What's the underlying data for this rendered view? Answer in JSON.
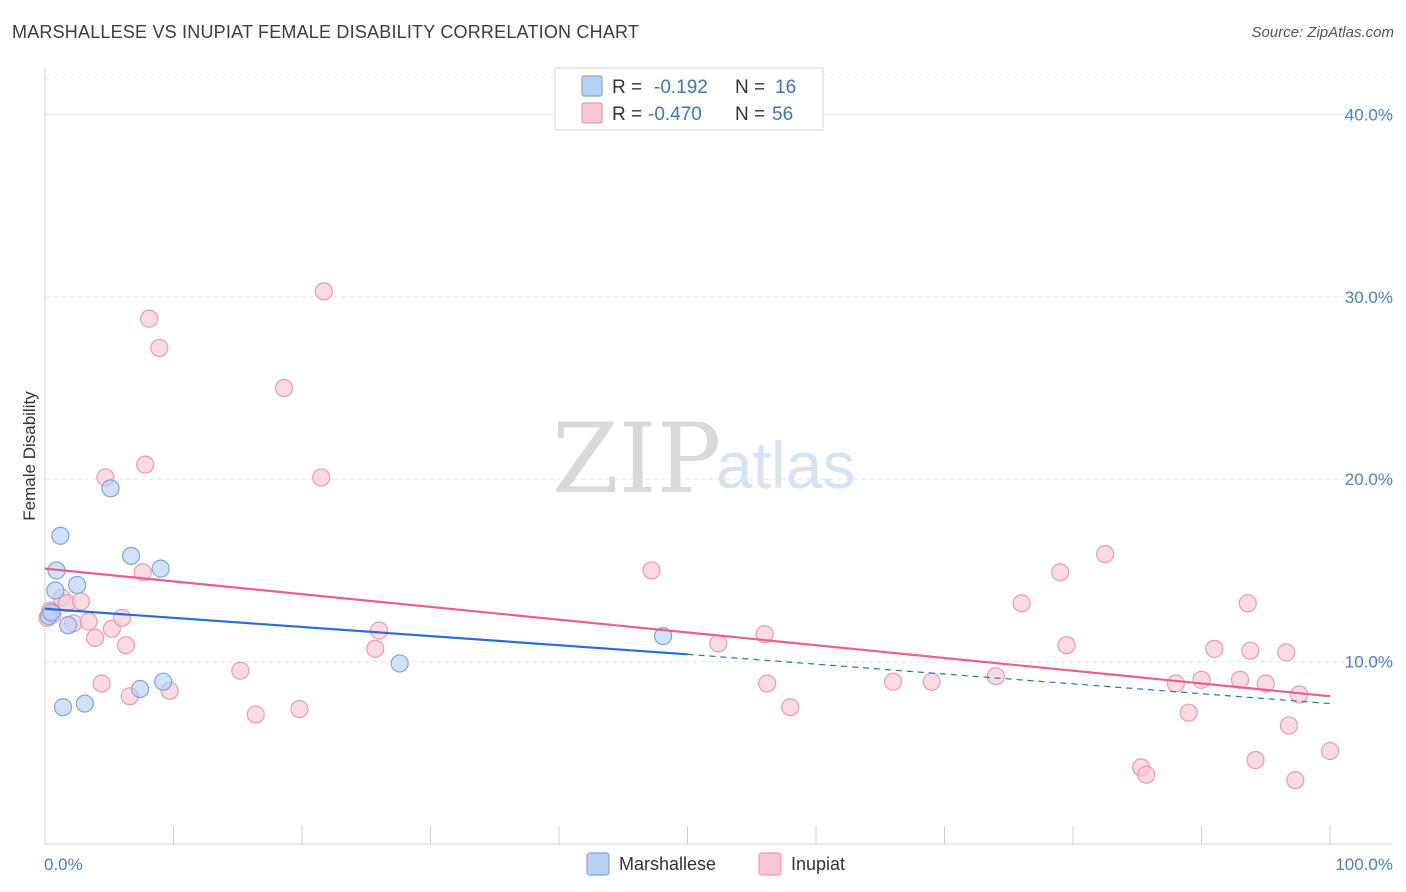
{
  "header": {
    "title": "MARSHALLESE VS INUPIAT FEMALE DISABILITY CORRELATION CHART",
    "source": "Source: ZipAtlas.com"
  },
  "watermark": {
    "zip": "ZIP",
    "atlas": "atlas"
  },
  "legend": {
    "row1": {
      "r_label": "R =",
      "r_value": "-0.192",
      "n_label": "N =",
      "n_value": "16"
    },
    "row2": {
      "r_label": "R =",
      "r_value": "-0.470",
      "n_label": "N =",
      "n_value": "56"
    }
  },
  "colors": {
    "marshallese_fill": "#b9d1f3",
    "marshallese_stroke": "#7ea6e0",
    "marshallese_line": "#2a6fd0",
    "inupiat_fill": "#f8c6d4",
    "inupiat_stroke": "#ee9ab4",
    "inupiat_line": "#e8608c"
  },
  "chart_data": {
    "type": "scatter",
    "title": "MARSHALLESE VS INUPIAT FEMALE DISABILITY CORRELATION CHART",
    "ylabel": "Female Disability",
    "xlabel": "",
    "xlim": [
      0,
      100
    ],
    "ylim": [
      0,
      42
    ],
    "x_tick_labels": [
      "0.0%",
      "100.0%"
    ],
    "y_ticks": [
      10,
      20,
      30,
      40
    ],
    "y_tick_labels": [
      "10.0%",
      "20.0%",
      "30.0%",
      "40.0%"
    ],
    "legend_bottom": [
      "Marshallese",
      "Inupiat"
    ],
    "series": [
      {
        "name": "Marshallese",
        "r": -0.192,
        "n": 16,
        "trend": {
          "x0": 0,
          "y0": 12.9,
          "x1": 50,
          "y1": 10.4,
          "dash_to": 100,
          "dash_y": 7.7
        },
        "points": [
          [
            0.3,
            12.5
          ],
          [
            0.5,
            12.7
          ],
          [
            0.8,
            13.9
          ],
          [
            0.9,
            15.0
          ],
          [
            1.2,
            16.9
          ],
          [
            1.4,
            7.5
          ],
          [
            1.8,
            12.0
          ],
          [
            2.5,
            14.2
          ],
          [
            3.1,
            7.7
          ],
          [
            5.1,
            19.5
          ],
          [
            6.7,
            15.8
          ],
          [
            7.4,
            8.5
          ],
          [
            9.0,
            15.1
          ],
          [
            9.2,
            8.9
          ],
          [
            27.6,
            9.9
          ],
          [
            48.1,
            11.4
          ]
        ]
      },
      {
        "name": "Inupiat",
        "r": -0.47,
        "n": 56,
        "trend": {
          "x0": 0,
          "y0": 15.1,
          "x1": 100,
          "y1": 8.1
        },
        "points": [
          [
            0.2,
            12.4
          ],
          [
            0.4,
            12.8
          ],
          [
            0.6,
            12.6
          ],
          [
            1.3,
            13.5
          ],
          [
            1.7,
            13.2
          ],
          [
            2.2,
            12.1
          ],
          [
            2.8,
            13.3
          ],
          [
            3.4,
            12.2
          ],
          [
            3.9,
            11.3
          ],
          [
            4.4,
            8.8
          ],
          [
            4.7,
            20.1
          ],
          [
            5.2,
            11.8
          ],
          [
            6.0,
            12.4
          ],
          [
            6.3,
            10.9
          ],
          [
            6.6,
            8.1
          ],
          [
            7.6,
            14.9
          ],
          [
            7.8,
            20.8
          ],
          [
            8.1,
            28.8
          ],
          [
            8.9,
            27.2
          ],
          [
            9.7,
            8.4
          ],
          [
            15.2,
            9.5
          ],
          [
            16.4,
            7.1
          ],
          [
            18.6,
            25.0
          ],
          [
            19.8,
            7.4
          ],
          [
            21.5,
            20.1
          ],
          [
            21.7,
            30.3
          ],
          [
            25.7,
            10.7
          ],
          [
            26.0,
            11.7
          ],
          [
            47.2,
            15.0
          ],
          [
            52.4,
            11.0
          ],
          [
            56.0,
            11.5
          ],
          [
            56.2,
            8.8
          ],
          [
            58.0,
            7.5
          ],
          [
            66.0,
            8.9
          ],
          [
            69.0,
            8.9
          ],
          [
            74.0,
            9.2
          ],
          [
            76.0,
            13.2
          ],
          [
            79.0,
            14.9
          ],
          [
            79.5,
            10.9
          ],
          [
            82.5,
            15.9
          ],
          [
            85.3,
            4.2
          ],
          [
            85.7,
            3.8
          ],
          [
            88.0,
            8.8
          ],
          [
            89.0,
            7.2
          ],
          [
            90.0,
            9.0
          ],
          [
            91.0,
            10.7
          ],
          [
            93.0,
            9.0
          ],
          [
            93.6,
            13.2
          ],
          [
            93.8,
            10.6
          ],
          [
            94.2,
            4.6
          ],
          [
            95.0,
            8.8
          ],
          [
            96.6,
            10.5
          ],
          [
            96.8,
            6.5
          ],
          [
            97.3,
            3.5
          ],
          [
            97.6,
            8.2
          ],
          [
            100.0,
            5.1
          ]
        ]
      }
    ]
  }
}
